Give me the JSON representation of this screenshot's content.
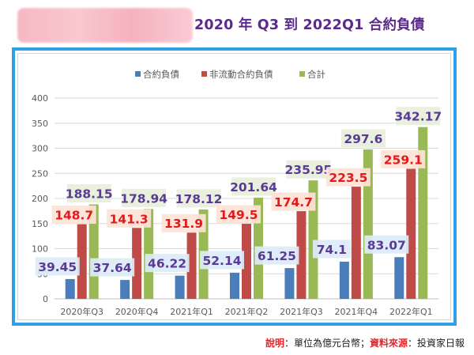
{
  "title": "2020 年 Q3 到 2022Q1 合約負債",
  "note": {
    "label1": "說明",
    "text1": "：單位為億元台幣；",
    "label2": "資料來源",
    "text2": "：投資家日報"
  },
  "colors": {
    "accent_title": "#5b2a8c",
    "frame": "#2f9fe6"
  },
  "chart_data": {
    "type": "bar",
    "categories": [
      "2020年Q3",
      "2020年Q4",
      "2021年Q1",
      "2021年Q2",
      "2021年Q3",
      "2021年Q4",
      "2022年Q1"
    ],
    "series": [
      {
        "name": "合約負債",
        "values": [
          39.45,
          37.64,
          46.22,
          52.14,
          61.25,
          74.1,
          83.07
        ],
        "labels": [
          "39.45",
          "37.64",
          "46.22",
          "52.14",
          "61.25",
          "74.1",
          "83.07"
        ],
        "color": "#4a7ebb",
        "label_color": "#5a3a96",
        "label_bg": "#dcebf7"
      },
      {
        "name": "非流動合約負債",
        "values": [
          148.7,
          141.3,
          131.9,
          149.5,
          174.7,
          223.5,
          259.1
        ],
        "labels": [
          "148.7",
          "141.3",
          "131.9",
          "149.5",
          "174.7",
          "223.5",
          "259.1"
        ],
        "color": "#be4b48",
        "label_color": "#e3191e",
        "label_bg": "#fde3d6"
      },
      {
        "name": "合計",
        "values": [
          188.15,
          178.94,
          178.12,
          201.64,
          235.95,
          297.6,
          342.17
        ],
        "labels": [
          "188.15",
          "178.94",
          "178.12",
          "201.64",
          "235.95",
          "297.6",
          "342.17"
        ],
        "color": "#98b954",
        "label_color": "#5a3a96",
        "label_bg": "#e7efda"
      }
    ],
    "ylim": [
      0,
      400
    ],
    "yticks": [
      "0",
      "50",
      "100",
      "150",
      "200",
      "250",
      "300",
      "350",
      "400"
    ],
    "legend_position": "top",
    "grid": true
  }
}
